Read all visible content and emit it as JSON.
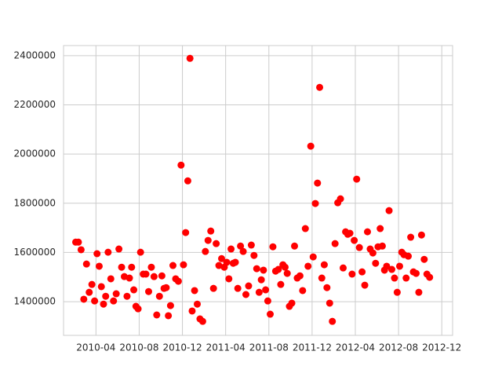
{
  "chart_data": {
    "type": "scatter",
    "color": "#ff0000",
    "grid": true,
    "x": [
      "2010-02",
      "2010-02",
      "2010-02",
      "2010-02",
      "2010-03",
      "2010-03",
      "2010-03",
      "2010-03",
      "2010-04",
      "2010-04",
      "2010-04",
      "2010-04",
      "2010-04",
      "2010-05",
      "2010-05",
      "2010-05",
      "2010-05",
      "2010-06",
      "2010-06",
      "2010-06",
      "2010-06",
      "2010-07",
      "2010-07",
      "2010-07",
      "2010-07",
      "2010-07",
      "2010-08",
      "2010-08",
      "2010-08",
      "2010-08",
      "2010-09",
      "2010-09",
      "2010-09",
      "2010-09",
      "2010-10",
      "2010-10",
      "2010-10",
      "2010-10",
      "2010-10",
      "2010-11",
      "2010-11",
      "2010-11",
      "2010-11",
      "2010-12",
      "2010-12",
      "2010-12",
      "2010-12",
      "2010-12",
      "2011-01",
      "2011-01",
      "2011-01",
      "2011-01",
      "2011-02",
      "2011-02",
      "2011-02",
      "2011-02",
      "2011-03",
      "2011-03",
      "2011-03",
      "2011-03",
      "2011-04",
      "2011-04",
      "2011-04",
      "2011-04",
      "2011-04",
      "2011-05",
      "2011-05",
      "2011-05",
      "2011-05",
      "2011-06",
      "2011-06",
      "2011-06",
      "2011-06",
      "2011-07",
      "2011-07",
      "2011-07",
      "2011-07",
      "2011-07",
      "2011-08",
      "2011-08",
      "2011-08",
      "2011-08",
      "2011-09",
      "2011-09",
      "2011-09",
      "2011-09",
      "2011-09",
      "2011-10",
      "2011-10",
      "2011-10",
      "2011-10",
      "2011-11",
      "2011-11",
      "2011-11",
      "2011-11",
      "2011-12",
      "2011-12",
      "2011-12",
      "2011-12",
      "2011-12",
      "2012-01",
      "2012-01",
      "2012-01",
      "2012-01",
      "2012-02",
      "2012-02",
      "2012-02",
      "2012-02",
      "2012-03",
      "2012-03",
      "2012-03",
      "2012-03",
      "2012-03",
      "2012-04",
      "2012-04",
      "2012-04",
      "2012-04",
      "2012-05",
      "2012-05",
      "2012-05",
      "2012-05",
      "2012-06",
      "2012-06",
      "2012-06",
      "2012-06",
      "2012-06",
      "2012-07",
      "2012-07",
      "2012-07",
      "2012-07",
      "2012-08",
      "2012-08",
      "2012-08",
      "2012-08",
      "2012-08",
      "2012-09",
      "2012-09",
      "2012-09",
      "2012-09",
      "2012-10",
      "2012-10",
      "2012-10",
      "2012-10"
    ],
    "values": [
      1642000,
      1642000,
      1611000,
      1410000,
      1553000,
      1438000,
      1470000,
      1403000,
      1595000,
      1544000,
      1461000,
      1390000,
      1422000,
      1601000,
      1493000,
      1403000,
      1432000,
      1614000,
      1540000,
      1502000,
      1422000,
      1496000,
      1540000,
      1448000,
      1381000,
      1371000,
      1601000,
      1512000,
      1512000,
      1441000,
      1540000,
      1502000,
      1346000,
      1422000,
      1505000,
      1454000,
      1457000,
      1343000,
      1384000,
      1547000,
      1493000,
      1483000,
      1955000,
      1550000,
      1681000,
      1891000,
      2389000,
      1362000,
      1445000,
      1390000,
      1330000,
      1320000,
      1604000,
      1649000,
      1687000,
      1454000,
      1636000,
      1547000,
      1575000,
      1540000,
      1560000,
      1493000,
      1614000,
      1556000,
      1560000,
      1454000,
      1626000,
      1604000,
      1429000,
      1464000,
      1630000,
      1588000,
      1534000,
      1438000,
      1489000,
      1528000,
      1448000,
      1403000,
      1349000,
      1623000,
      1524000,
      1531000,
      1470000,
      1550000,
      1540000,
      1515000,
      1381000,
      1394000,
      1626000,
      1496000,
      1505000,
      1445000,
      1697000,
      1544000,
      2032000,
      1582000,
      1799000,
      1882000,
      2271000,
      1496000,
      1550000,
      1457000,
      1394000,
      1320000,
      1636000,
      1802000,
      1818000,
      1537000,
      1684000,
      1674000,
      1678000,
      1512000,
      1649000,
      1898000,
      1620000,
      1521000,
      1467000,
      1684000,
      1614000,
      1598000,
      1556000,
      1623000,
      1697000,
      1626000,
      1528000,
      1544000,
      1770000,
      1531000,
      1496000,
      1438000,
      1544000,
      1601000,
      1591000,
      1496000,
      1585000,
      1662000,
      1521000,
      1515000,
      1438000,
      1671000,
      1572000,
      1512000,
      1499000
    ],
    "xlim": [
      "2010-01",
      "2013-01"
    ],
    "xticks": [
      "2010-04",
      "2010-08",
      "2010-12",
      "2011-04",
      "2011-08",
      "2011-12",
      "2012-04",
      "2012-08",
      "2012-12"
    ],
    "ylim": [
      1263000,
      2441000
    ],
    "yticks": [
      1400000,
      1600000,
      1800000,
      2000000,
      2200000,
      2400000
    ]
  }
}
